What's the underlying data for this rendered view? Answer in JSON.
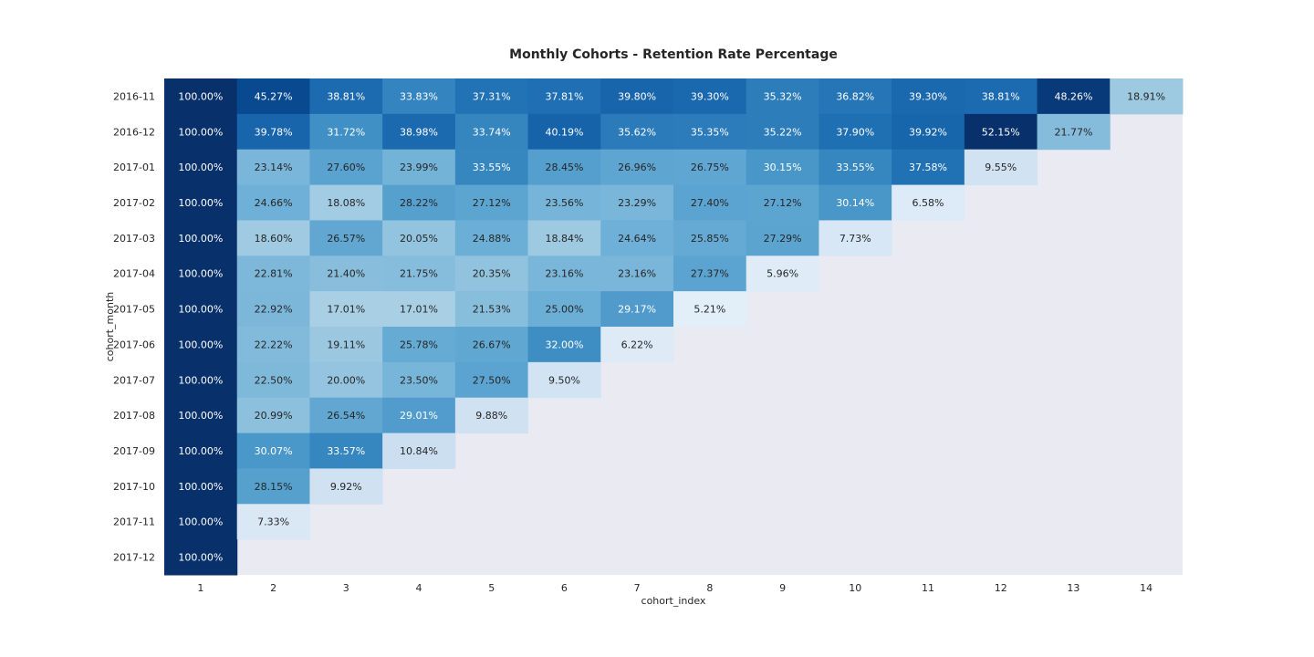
{
  "chart_data": {
    "type": "heatmap",
    "title": "Monthly Cohorts - Retention Rate Percentage",
    "xlabel": "cohort_index",
    "ylabel": "cohort_month",
    "x_categories": [
      "1",
      "2",
      "3",
      "4",
      "5",
      "6",
      "7",
      "8",
      "9",
      "10",
      "11",
      "12",
      "13",
      "14"
    ],
    "y_categories": [
      "2016-11",
      "2016-12",
      "2017-01",
      "2017-02",
      "2017-03",
      "2017-04",
      "2017-05",
      "2017-06",
      "2017-07",
      "2017-08",
      "2017-09",
      "2017-10",
      "2017-11",
      "2017-12"
    ],
    "value_format": "percent_2dp",
    "colormap": "Blues",
    "color_range": [
      0,
      0.5
    ],
    "missing_color": "#eaeaf2",
    "legend": "none",
    "grid": false,
    "values": [
      [
        1.0,
        0.4527,
        0.3881,
        0.3383,
        0.3731,
        0.3781,
        0.398,
        0.393,
        0.3532,
        0.3682,
        0.393,
        0.3881,
        0.4826,
        0.1891
      ],
      [
        1.0,
        0.3978,
        0.3172,
        0.3898,
        0.3374,
        0.4019,
        0.3562,
        0.3535,
        0.3522,
        0.379,
        0.3992,
        0.5215,
        0.2177,
        null
      ],
      [
        1.0,
        0.2314,
        0.276,
        0.2399,
        0.3355,
        0.2845,
        0.2696,
        0.2675,
        0.3015,
        0.3355,
        0.3758,
        0.0955,
        null,
        null
      ],
      [
        1.0,
        0.2466,
        0.1808,
        0.2822,
        0.2712,
        0.2356,
        0.2329,
        0.274,
        0.2712,
        0.3014,
        0.0658,
        null,
        null,
        null
      ],
      [
        1.0,
        0.186,
        0.2657,
        0.2005,
        0.2488,
        0.1884,
        0.2464,
        0.2585,
        0.2729,
        0.0773,
        null,
        null,
        null,
        null
      ],
      [
        1.0,
        0.2281,
        0.214,
        0.2175,
        0.2035,
        0.2316,
        0.2316,
        0.2737,
        0.0596,
        null,
        null,
        null,
        null,
        null
      ],
      [
        1.0,
        0.2292,
        0.1701,
        0.1701,
        0.2153,
        0.25,
        0.2917,
        0.0521,
        null,
        null,
        null,
        null,
        null,
        null
      ],
      [
        1.0,
        0.2222,
        0.1911,
        0.2578,
        0.2667,
        0.32,
        0.0622,
        null,
        null,
        null,
        null,
        null,
        null,
        null
      ],
      [
        1.0,
        0.225,
        0.2,
        0.235,
        0.275,
        0.095,
        null,
        null,
        null,
        null,
        null,
        null,
        null,
        null
      ],
      [
        1.0,
        0.2099,
        0.2654,
        0.2901,
        0.0988,
        null,
        null,
        null,
        null,
        null,
        null,
        null,
        null,
        null
      ],
      [
        1.0,
        0.3007,
        0.3357,
        0.1084,
        null,
        null,
        null,
        null,
        null,
        null,
        null,
        null,
        null,
        null
      ],
      [
        1.0,
        0.2815,
        0.0992,
        null,
        null,
        null,
        null,
        null,
        null,
        null,
        null,
        null,
        null,
        null
      ],
      [
        1.0,
        0.0733,
        null,
        null,
        null,
        null,
        null,
        null,
        null,
        null,
        null,
        null,
        null,
        null
      ],
      [
        1.0,
        null,
        null,
        null,
        null,
        null,
        null,
        null,
        null,
        null,
        null,
        null,
        null,
        null
      ]
    ]
  }
}
